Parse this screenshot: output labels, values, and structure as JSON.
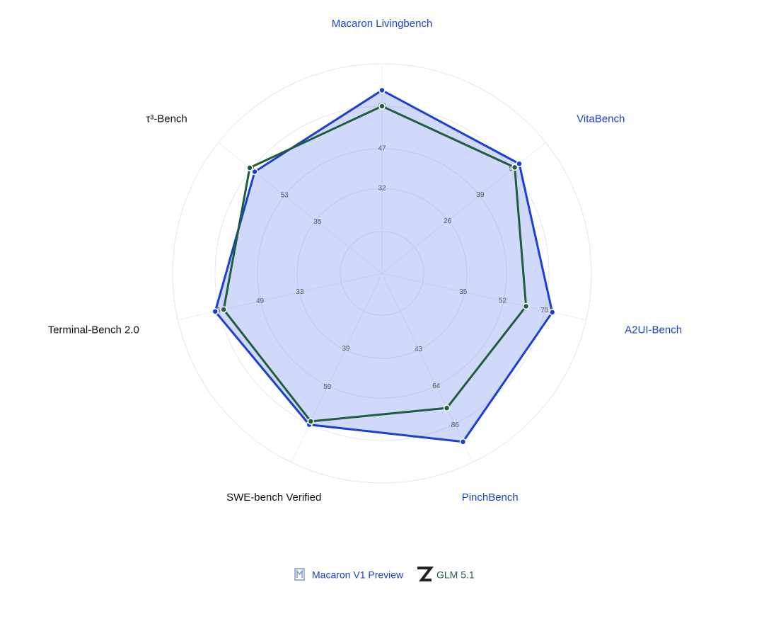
{
  "chart_data": {
    "type": "radar",
    "axes": [
      {
        "name": "Macaron Livingbench",
        "color": "#1a3fd1",
        "range": [
          0,
          79
        ],
        "ticks": [
          32,
          47,
          63
        ]
      },
      {
        "name": "VitaBench",
        "color": "#1a3fd1",
        "range": [
          0,
          65
        ],
        "ticks": [
          26,
          39,
          52
        ]
      },
      {
        "name": "A2UI-Bench",
        "color": "#1a3fd1",
        "range": [
          0,
          88
        ],
        "ticks": [
          35,
          52,
          70
        ]
      },
      {
        "name": "PinchBench",
        "color": "#1a3fd1",
        "range": [
          0,
          107
        ],
        "ticks": [
          43,
          64,
          86
        ]
      },
      {
        "name": "SWE-bench Verified",
        "color": "#111111",
        "range": [
          0,
          98
        ],
        "ticks": [
          39,
          59,
          78
        ]
      },
      {
        "name": "Terminal-Bench 2.0",
        "color": "#111111",
        "range": [
          0,
          82
        ],
        "ticks": [
          33,
          49,
          65
        ]
      },
      {
        "name": "τ³-Bench",
        "color": "#111111",
        "range": [
          0,
          89
        ],
        "ticks": [
          35,
          53,
          71
        ]
      }
    ],
    "series": [
      {
        "name": "Macaron V1 Preview",
        "color": "#1a3fd1",
        "fill": "rgba(90,120,240,0.28)",
        "values": [
          69,
          54.5,
          73.4,
          95.4,
          78.5,
          67,
          69.2
        ]
      },
      {
        "name": "GLM 5.1",
        "color": "#1e5e3f",
        "fill": "none",
        "values": [
          63,
          52.7,
          62.1,
          76.3,
          76.8,
          63.6,
          71.9
        ]
      }
    ]
  }
}
